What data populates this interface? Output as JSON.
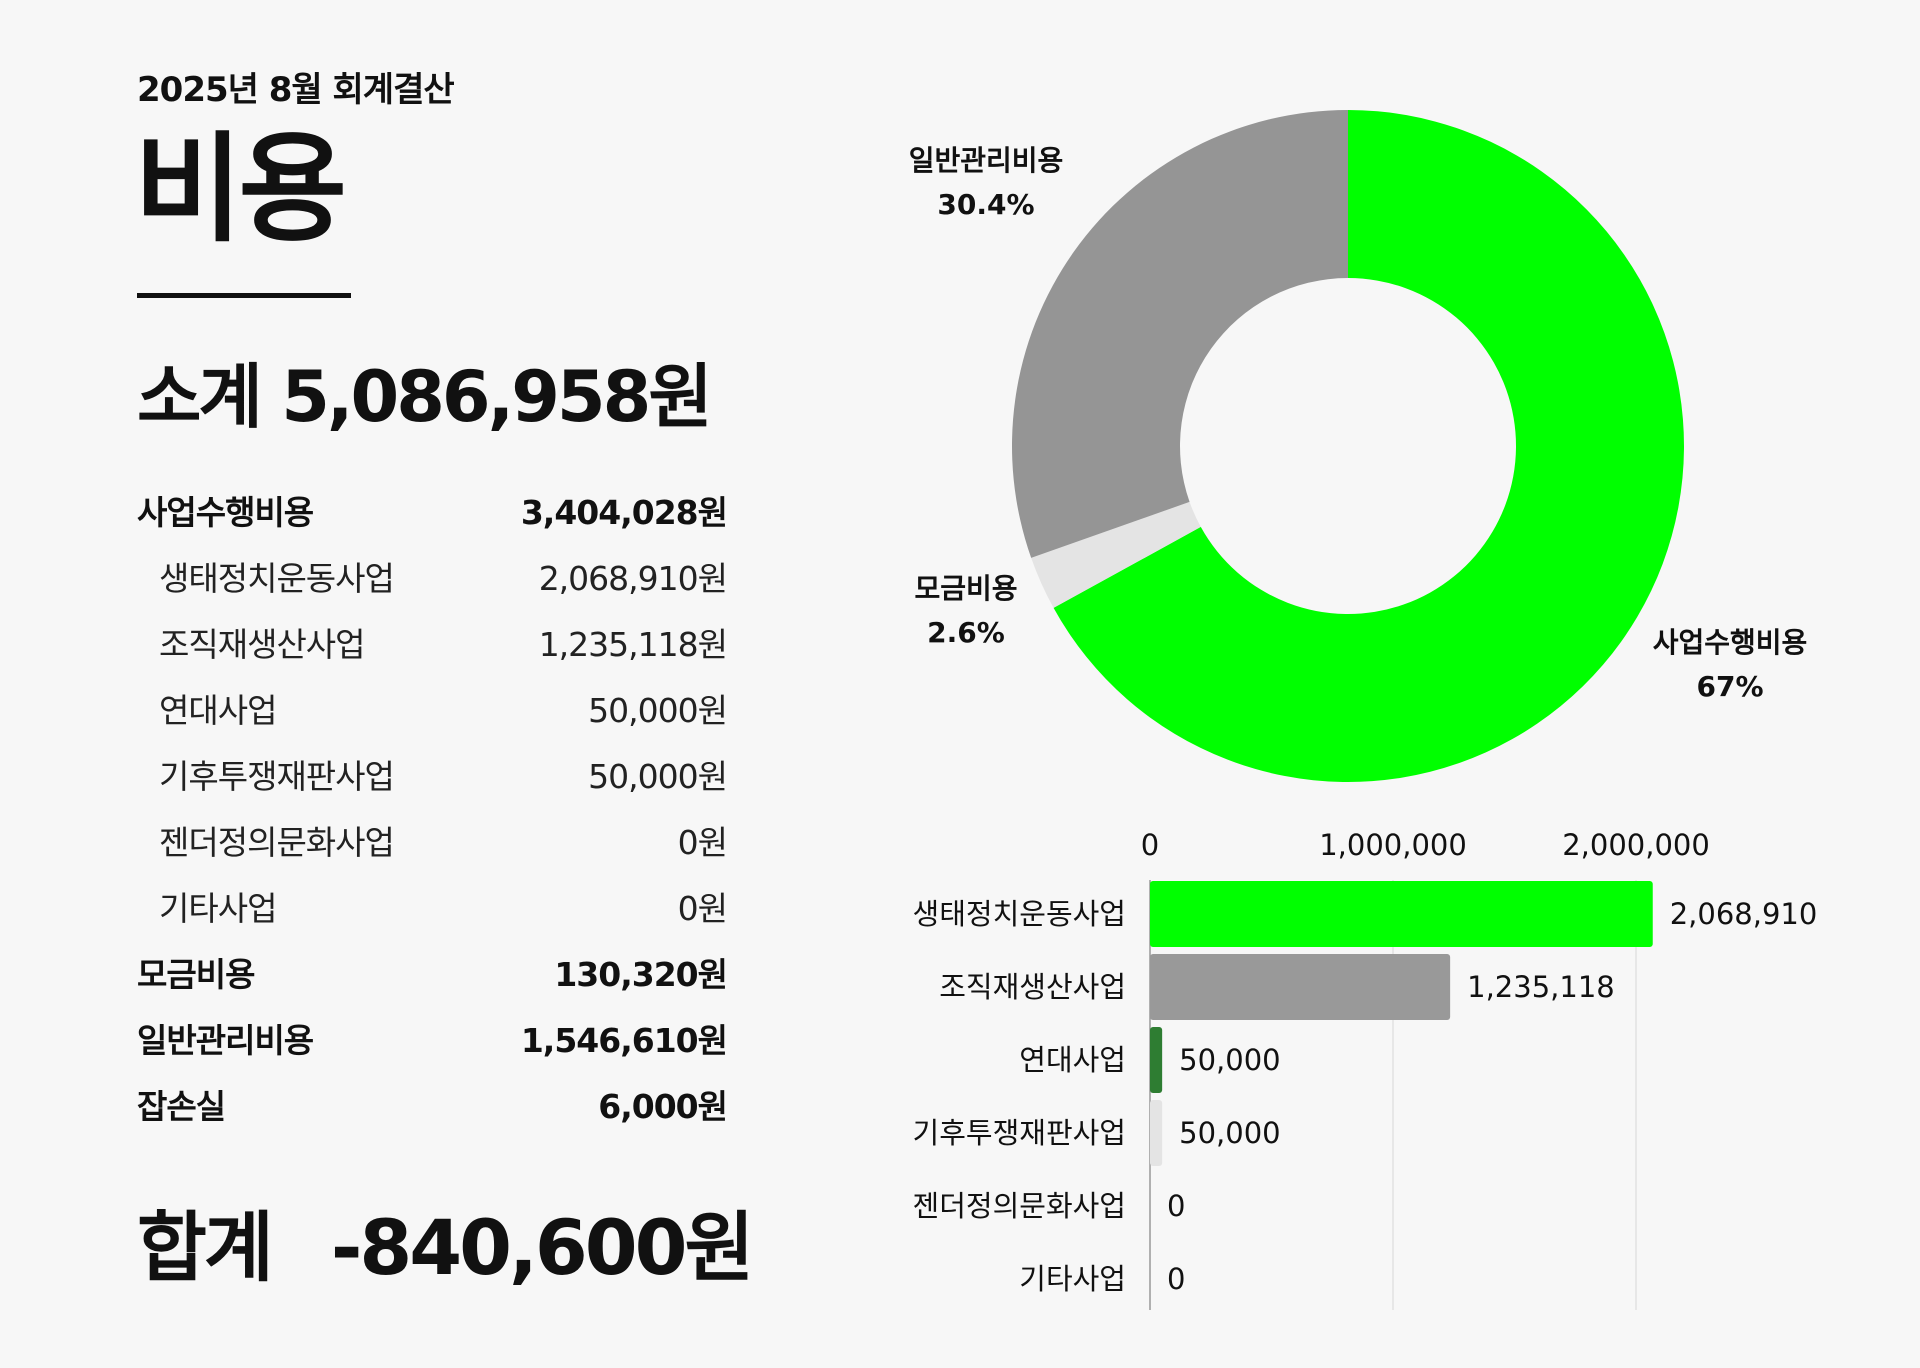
{
  "header": {
    "period": "2025년 8월 회계결산",
    "title": "비용"
  },
  "summary": {
    "subtotal_label": "소계",
    "subtotal_value": "5,086,958원",
    "rows": [
      {
        "label": "사업수행비용",
        "amount": "3,404,028원",
        "level": "category"
      },
      {
        "label": "생태정치운동사업",
        "amount": "2,068,910원",
        "level": "sub"
      },
      {
        "label": "조직재생산사업",
        "amount": "1,235,118원",
        "level": "sub"
      },
      {
        "label": "연대사업",
        "amount": "50,000원",
        "level": "sub"
      },
      {
        "label": "기후투쟁재판사업",
        "amount": "50,000원",
        "level": "sub"
      },
      {
        "label": "젠더정의문화사업",
        "amount": "0원",
        "level": "sub"
      },
      {
        "label": "기타사업",
        "amount": "0원",
        "level": "sub"
      },
      {
        "label": "모금비용",
        "amount": "130,320원",
        "level": "category"
      },
      {
        "label": "일반관리비용",
        "amount": "1,546,610원",
        "level": "category"
      },
      {
        "label": "잡손실",
        "amount": "6,000원",
        "level": "category"
      }
    ],
    "total_label": "합계",
    "total_value": "-840,600원"
  },
  "chart_data": [
    {
      "type": "pie",
      "variant": "donut",
      "start_angle_deg": 0,
      "direction": "clockwise",
      "slices": [
        {
          "label": "사업수행비용",
          "value": 67,
          "value_label": "67%",
          "color": "#00ff00"
        },
        {
          "label": "모금비용",
          "value": 2.6,
          "value_label": "2.6%",
          "color": "#e4e4e4"
        },
        {
          "label": "일반관리비용",
          "value": 30.4,
          "value_label": "30.4%",
          "color": "#959595"
        }
      ]
    },
    {
      "type": "bar",
      "orientation": "horizontal",
      "categories": [
        "생태정치운동사업",
        "조직재생산사업",
        "연대사업",
        "기후투쟁재판사업",
        "젠더정의문화사업",
        "기타사업"
      ],
      "values": [
        2068910,
        1235118,
        50000,
        50000,
        0,
        0
      ],
      "value_labels": [
        "2,068,910",
        "1,235,118",
        "50,000",
        "50,000",
        "0",
        "0"
      ],
      "colors": [
        "#00ff00",
        "#999999",
        "#2e7d32",
        "#e4e4e4",
        "#cccccc",
        "#cccccc"
      ],
      "xlim": [
        0,
        2200000
      ],
      "xticks": [
        0,
        1000000,
        2000000
      ],
      "xtick_labels": [
        "0",
        "1,000,000",
        "2,000,000"
      ],
      "grid": true,
      "axis_position": "top"
    }
  ]
}
